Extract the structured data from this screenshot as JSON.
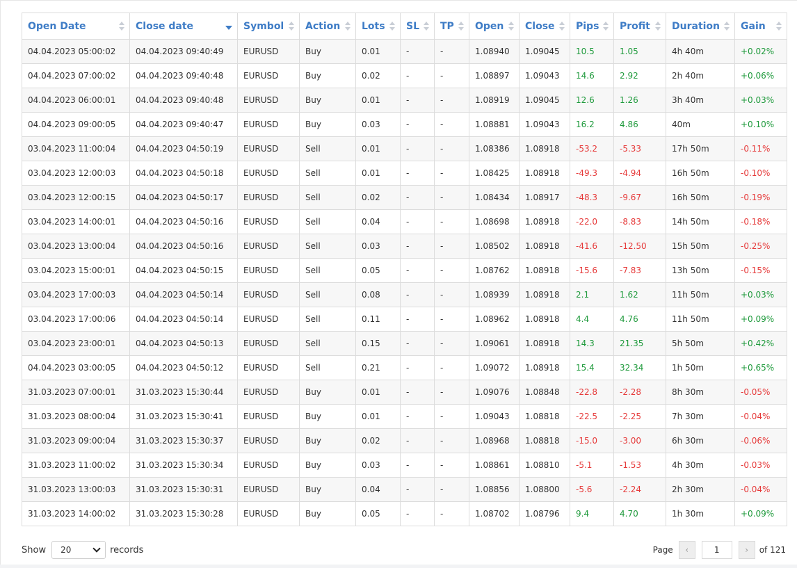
{
  "columns": [
    "Open Date",
    "Close date",
    "Symbol",
    "Action",
    "Lots",
    "SL",
    "TP",
    "Open",
    "Close",
    "Pips",
    "Profit",
    "Duration",
    "Gain"
  ],
  "sorted_column": "Close date",
  "sort_direction": "descending",
  "rows": [
    [
      "04.04.2023 05:00:02",
      "04.04.2023 09:40:49",
      "EURUSD",
      "Buy",
      "0.01",
      "-",
      "-",
      "1.08940",
      "1.09045",
      "10.5",
      "1.05",
      "4h 40m",
      "+0.02%"
    ],
    [
      "04.04.2023 07:00:02",
      "04.04.2023 09:40:48",
      "EURUSD",
      "Buy",
      "0.02",
      "-",
      "-",
      "1.08897",
      "1.09043",
      "14.6",
      "2.92",
      "2h 40m",
      "+0.06%"
    ],
    [
      "04.04.2023 06:00:01",
      "04.04.2023 09:40:48",
      "EURUSD",
      "Buy",
      "0.01",
      "-",
      "-",
      "1.08919",
      "1.09045",
      "12.6",
      "1.26",
      "3h 40m",
      "+0.03%"
    ],
    [
      "04.04.2023 09:00:05",
      "04.04.2023 09:40:47",
      "EURUSD",
      "Buy",
      "0.03",
      "-",
      "-",
      "1.08881",
      "1.09043",
      "16.2",
      "4.86",
      "40m",
      "+0.10%"
    ],
    [
      "03.04.2023 11:00:04",
      "04.04.2023 04:50:19",
      "EURUSD",
      "Sell",
      "0.01",
      "-",
      "-",
      "1.08386",
      "1.08918",
      "-53.2",
      "-5.33",
      "17h 50m",
      "-0.11%"
    ],
    [
      "03.04.2023 12:00:03",
      "04.04.2023 04:50:18",
      "EURUSD",
      "Sell",
      "0.01",
      "-",
      "-",
      "1.08425",
      "1.08918",
      "-49.3",
      "-4.94",
      "16h 50m",
      "-0.10%"
    ],
    [
      "03.04.2023 12:00:15",
      "04.04.2023 04:50:17",
      "EURUSD",
      "Sell",
      "0.02",
      "-",
      "-",
      "1.08434",
      "1.08917",
      "-48.3",
      "-9.67",
      "16h 50m",
      "-0.19%"
    ],
    [
      "03.04.2023 14:00:01",
      "04.04.2023 04:50:16",
      "EURUSD",
      "Sell",
      "0.04",
      "-",
      "-",
      "1.08698",
      "1.08918",
      "-22.0",
      "-8.83",
      "14h 50m",
      "-0.18%"
    ],
    [
      "03.04.2023 13:00:04",
      "04.04.2023 04:50:16",
      "EURUSD",
      "Sell",
      "0.03",
      "-",
      "-",
      "1.08502",
      "1.08918",
      "-41.6",
      "-12.50",
      "15h 50m",
      "-0.25%"
    ],
    [
      "03.04.2023 15:00:01",
      "04.04.2023 04:50:15",
      "EURUSD",
      "Sell",
      "0.05",
      "-",
      "-",
      "1.08762",
      "1.08918",
      "-15.6",
      "-7.83",
      "13h 50m",
      "-0.15%"
    ],
    [
      "03.04.2023 17:00:03",
      "04.04.2023 04:50:14",
      "EURUSD",
      "Sell",
      "0.08",
      "-",
      "-",
      "1.08939",
      "1.08918",
      "2.1",
      "1.62",
      "11h 50m",
      "+0.03%"
    ],
    [
      "03.04.2023 17:00:06",
      "04.04.2023 04:50:14",
      "EURUSD",
      "Sell",
      "0.11",
      "-",
      "-",
      "1.08962",
      "1.08918",
      "4.4",
      "4.76",
      "11h 50m",
      "+0.09%"
    ],
    [
      "03.04.2023 23:00:01",
      "04.04.2023 04:50:13",
      "EURUSD",
      "Sell",
      "0.15",
      "-",
      "-",
      "1.09061",
      "1.08918",
      "14.3",
      "21.35",
      "5h 50m",
      "+0.42%"
    ],
    [
      "04.04.2023 03:00:05",
      "04.04.2023 04:50:12",
      "EURUSD",
      "Sell",
      "0.21",
      "-",
      "-",
      "1.09072",
      "1.08918",
      "15.4",
      "32.34",
      "1h 50m",
      "+0.65%"
    ],
    [
      "31.03.2023 07:00:01",
      "31.03.2023 15:30:44",
      "EURUSD",
      "Buy",
      "0.01",
      "-",
      "-",
      "1.09076",
      "1.08848",
      "-22.8",
      "-2.28",
      "8h 30m",
      "-0.05%"
    ],
    [
      "31.03.2023 08:00:04",
      "31.03.2023 15:30:41",
      "EURUSD",
      "Buy",
      "0.01",
      "-",
      "-",
      "1.09043",
      "1.08818",
      "-22.5",
      "-2.25",
      "7h 30m",
      "-0.04%"
    ],
    [
      "31.03.2023 09:00:04",
      "31.03.2023 15:30:37",
      "EURUSD",
      "Buy",
      "0.02",
      "-",
      "-",
      "1.08968",
      "1.08818",
      "-15.0",
      "-3.00",
      "6h 30m",
      "-0.06%"
    ],
    [
      "31.03.2023 11:00:02",
      "31.03.2023 15:30:34",
      "EURUSD",
      "Buy",
      "0.03",
      "-",
      "-",
      "1.08861",
      "1.08810",
      "-5.1",
      "-1.53",
      "4h 30m",
      "-0.03%"
    ],
    [
      "31.03.2023 13:00:03",
      "31.03.2023 15:30:31",
      "EURUSD",
      "Buy",
      "0.04",
      "-",
      "-",
      "1.08856",
      "1.08800",
      "-5.6",
      "-2.24",
      "2h 30m",
      "-0.04%"
    ],
    [
      "31.03.2023 14:00:02",
      "31.03.2023 15:30:28",
      "EURUSD",
      "Buy",
      "0.05",
      "-",
      "-",
      "1.08702",
      "1.08796",
      "9.4",
      "4.70",
      "1h 30m",
      "+0.09%"
    ]
  ],
  "footer": {
    "show_label": "Show",
    "records_value": "20",
    "records_label": "records",
    "page_label": "Page",
    "page_value": "1",
    "of_label": "of 121",
    "prev_icon": "chevron-left-icon",
    "next_icon": "chevron-right-icon",
    "dropdown_icon": "chevron-down-icon"
  },
  "colors": {
    "header_text": "#3e7cc6",
    "positive": "#1f9a3c",
    "negative": "#e63a3a",
    "row_stripe": "#f7f7f7",
    "border": "#dcdcdc"
  }
}
